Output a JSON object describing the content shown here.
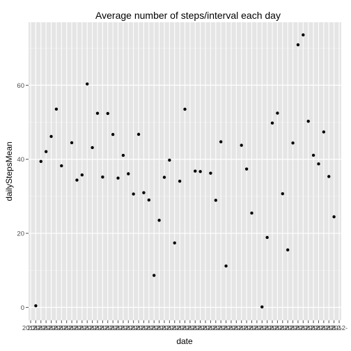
{
  "chart_data": {
    "type": "scatter",
    "title": "Average number of steps/interval each day",
    "xlabel": "date",
    "ylabel": "dailyStepsMean",
    "y_ticks": [
      0,
      20,
      40,
      60
    ],
    "ylim": [
      -3.5,
      77
    ],
    "x_tick_label": "2012-",
    "grid": true,
    "panel_color": "#e5e5e5",
    "gridline_color": "#ffffff",
    "point_color": "#000000",
    "n_days": 61,
    "points": [
      {
        "day": 2,
        "value": 0.44
      },
      {
        "day": 3,
        "value": 39.42
      },
      {
        "day": 4,
        "value": 42.07
      },
      {
        "day": 5,
        "value": 46.16
      },
      {
        "day": 6,
        "value": 53.54
      },
      {
        "day": 7,
        "value": 38.25
      },
      {
        "day": 9,
        "value": 44.48
      },
      {
        "day": 10,
        "value": 34.38
      },
      {
        "day": 11,
        "value": 35.78
      },
      {
        "day": 12,
        "value": 60.35
      },
      {
        "day": 13,
        "value": 43.15
      },
      {
        "day": 14,
        "value": 52.42
      },
      {
        "day": 15,
        "value": 35.2
      },
      {
        "day": 16,
        "value": 52.38
      },
      {
        "day": 17,
        "value": 46.71
      },
      {
        "day": 18,
        "value": 34.92
      },
      {
        "day": 19,
        "value": 41.07
      },
      {
        "day": 20,
        "value": 36.09
      },
      {
        "day": 21,
        "value": 30.63
      },
      {
        "day": 22,
        "value": 46.74
      },
      {
        "day": 23,
        "value": 30.97
      },
      {
        "day": 24,
        "value": 29.01
      },
      {
        "day": 25,
        "value": 8.65
      },
      {
        "day": 26,
        "value": 23.53
      },
      {
        "day": 27,
        "value": 35.14
      },
      {
        "day": 28,
        "value": 39.78
      },
      {
        "day": 29,
        "value": 17.42
      },
      {
        "day": 30,
        "value": 34.09
      },
      {
        "day": 31,
        "value": 53.52
      },
      {
        "day": 33,
        "value": 36.81
      },
      {
        "day": 34,
        "value": 36.7
      },
      {
        "day": 36,
        "value": 36.25
      },
      {
        "day": 37,
        "value": 28.94
      },
      {
        "day": 38,
        "value": 44.73
      },
      {
        "day": 39,
        "value": 11.18
      },
      {
        "day": 42,
        "value": 43.78
      },
      {
        "day": 43,
        "value": 37.38
      },
      {
        "day": 44,
        "value": 25.47
      },
      {
        "day": 46,
        "value": 0.14
      },
      {
        "day": 47,
        "value": 18.89
      },
      {
        "day": 48,
        "value": 49.79
      },
      {
        "day": 49,
        "value": 52.47
      },
      {
        "day": 50,
        "value": 30.7
      },
      {
        "day": 51,
        "value": 15.53
      },
      {
        "day": 52,
        "value": 44.4
      },
      {
        "day": 53,
        "value": 70.93
      },
      {
        "day": 54,
        "value": 73.59
      },
      {
        "day": 55,
        "value": 50.27
      },
      {
        "day": 56,
        "value": 41.09
      },
      {
        "day": 57,
        "value": 38.76
      },
      {
        "day": 58,
        "value": 47.38
      },
      {
        "day": 59,
        "value": 35.36
      },
      {
        "day": 60,
        "value": 24.47
      }
    ]
  }
}
